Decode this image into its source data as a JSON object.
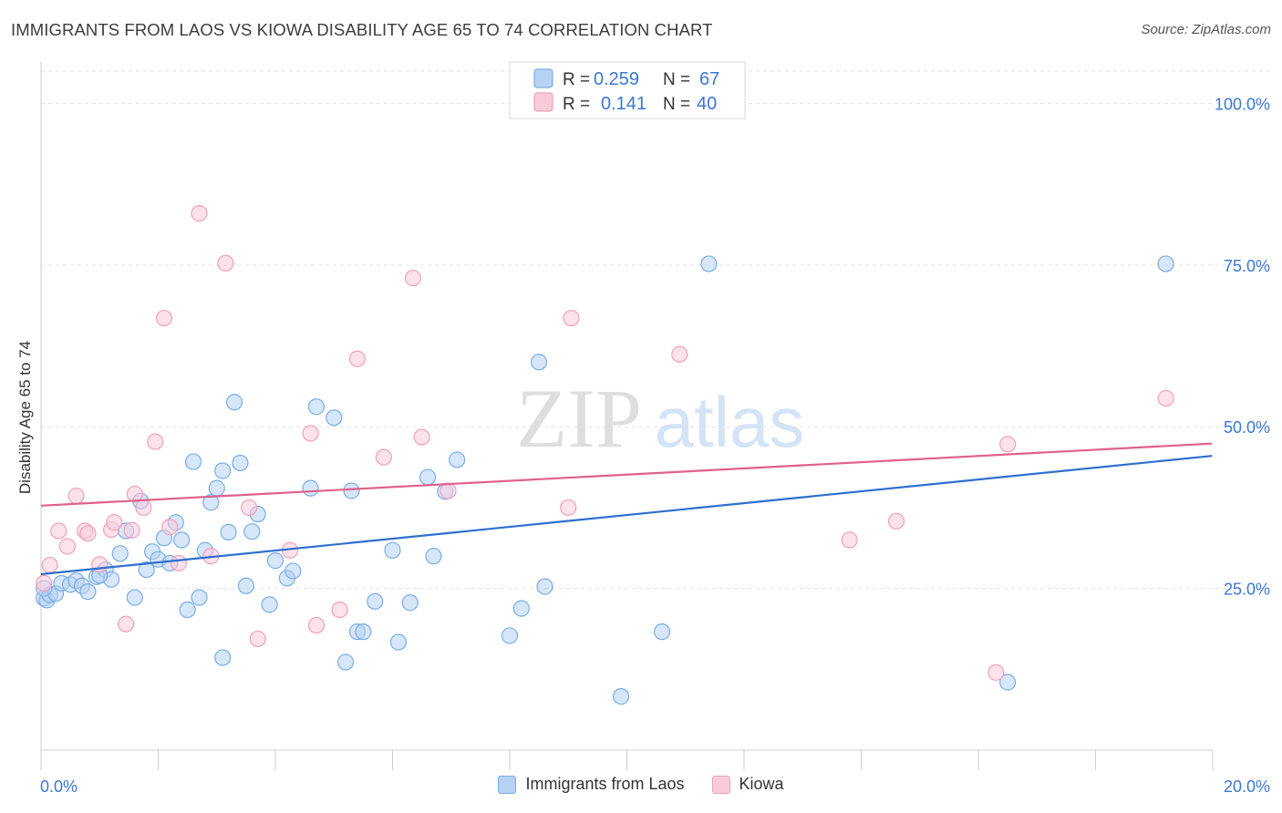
{
  "title": "IMMIGRANTS FROM LAOS VS KIOWA DISABILITY AGE 65 TO 74 CORRELATION CHART",
  "source": "Source: ZipAtlas.com",
  "watermark": {
    "zip": "ZIP",
    "atlas": "atlas"
  },
  "chart_data": {
    "type": "scatter",
    "xlabel": "",
    "ylabel": "Disability Age 65 to 74",
    "xlim": [
      0,
      20
    ],
    "ylim": [
      0,
      105
    ],
    "x_tick_labels": [
      "0.0%",
      "20.0%"
    ],
    "y_ticks": [
      25,
      50,
      75,
      100
    ],
    "y_tick_labels": [
      "25.0%",
      "50.0%",
      "75.0%",
      "100.0%"
    ],
    "grid": "horizontal dashed",
    "legend_placement": "top-center",
    "series": [
      {
        "name": "Immigrants from Laos",
        "color": "#7aaee8",
        "fill": "#b7d2f3",
        "line_color": "#2f6fcf",
        "R": "0.259",
        "N": "67",
        "trend": {
          "x": [
            0,
            19.99
          ],
          "y": [
            27.2,
            45.5
          ]
        },
        "points": [
          [
            0.05,
            23.5
          ],
          [
            0.1,
            23.2
          ],
          [
            0.15,
            24.0
          ],
          [
            0.25,
            24.2
          ],
          [
            0.35,
            25.8
          ],
          [
            0.5,
            25.6
          ],
          [
            0.6,
            26.2
          ],
          [
            0.7,
            25.4
          ],
          [
            0.8,
            24.5
          ],
          [
            0.95,
            26.8
          ],
          [
            1.1,
            27.9
          ],
          [
            1.2,
            26.4
          ],
          [
            1.35,
            30.4
          ],
          [
            1.45,
            33.9
          ],
          [
            1.6,
            23.6
          ],
          [
            1.7,
            38.5
          ],
          [
            1.8,
            27.9
          ],
          [
            1.9,
            30.7
          ],
          [
            2.0,
            29.5
          ],
          [
            2.1,
            32.8
          ],
          [
            2.2,
            28.9
          ],
          [
            2.3,
            35.2
          ],
          [
            2.4,
            32.5
          ],
          [
            2.5,
            21.7
          ],
          [
            2.6,
            44.6
          ],
          [
            2.7,
            23.6
          ],
          [
            2.8,
            30.9
          ],
          [
            2.9,
            38.3
          ],
          [
            3.0,
            40.5
          ],
          [
            3.1,
            43.2
          ],
          [
            3.1,
            14.3
          ],
          [
            3.2,
            33.7
          ],
          [
            3.3,
            53.8
          ],
          [
            3.4,
            44.4
          ],
          [
            3.5,
            25.4
          ],
          [
            3.6,
            33.8
          ],
          [
            3.7,
            36.5
          ],
          [
            3.9,
            22.5
          ],
          [
            4.0,
            29.3
          ],
          [
            4.2,
            26.6
          ],
          [
            4.3,
            27.7
          ],
          [
            4.6,
            40.5
          ],
          [
            4.7,
            53.1
          ],
          [
            5.0,
            51.4
          ],
          [
            5.2,
            13.6
          ],
          [
            5.3,
            40.1
          ],
          [
            5.4,
            18.3
          ],
          [
            5.5,
            18.3
          ],
          [
            5.7,
            23.0
          ],
          [
            6.0,
            30.9
          ],
          [
            6.1,
            16.7
          ],
          [
            6.3,
            22.8
          ],
          [
            6.6,
            42.2
          ],
          [
            6.7,
            30.0
          ],
          [
            6.9,
            40.0
          ],
          [
            7.1,
            44.9
          ],
          [
            8.0,
            17.7
          ],
          [
            8.2,
            21.9
          ],
          [
            8.5,
            60.0
          ],
          [
            8.6,
            25.3
          ],
          [
            9.9,
            8.3
          ],
          [
            10.6,
            18.3
          ],
          [
            11.4,
            75.2
          ],
          [
            16.5,
            10.5
          ],
          [
            19.2,
            75.2
          ],
          [
            0.05,
            25.0
          ],
          [
            1.0,
            27.0
          ]
        ]
      },
      {
        "name": "Kiowa",
        "color": "#f2a0ba",
        "fill": "#f9cbd9",
        "line_color": "#e0608c",
        "R": "0.141",
        "N": "40",
        "trend": {
          "x": [
            0,
            19.99
          ],
          "y": [
            37.8,
            47.4
          ]
        },
        "points": [
          [
            0.05,
            25.8
          ],
          [
            0.15,
            28.6
          ],
          [
            0.3,
            33.9
          ],
          [
            0.45,
            31.5
          ],
          [
            0.6,
            39.3
          ],
          [
            0.75,
            33.9
          ],
          [
            0.8,
            33.5
          ],
          [
            1.0,
            28.7
          ],
          [
            1.2,
            34.1
          ],
          [
            1.25,
            35.2
          ],
          [
            1.45,
            19.5
          ],
          [
            1.55,
            34.0
          ],
          [
            1.6,
            39.6
          ],
          [
            1.75,
            37.5
          ],
          [
            1.95,
            47.7
          ],
          [
            2.1,
            66.8
          ],
          [
            2.2,
            34.5
          ],
          [
            2.35,
            28.9
          ],
          [
            2.7,
            83.0
          ],
          [
            2.9,
            30.0
          ],
          [
            3.15,
            75.3
          ],
          [
            3.55,
            37.5
          ],
          [
            3.7,
            17.2
          ],
          [
            4.25,
            30.9
          ],
          [
            4.6,
            49.0
          ],
          [
            4.7,
            19.3
          ],
          [
            5.1,
            21.7
          ],
          [
            5.4,
            60.5
          ],
          [
            5.85,
            45.3
          ],
          [
            6.35,
            73.0
          ],
          [
            6.5,
            48.4
          ],
          [
            6.95,
            40.1
          ],
          [
            9.0,
            37.5
          ],
          [
            9.05,
            66.8
          ],
          [
            10.9,
            61.2
          ],
          [
            13.8,
            32.5
          ],
          [
            14.6,
            35.4
          ],
          [
            16.3,
            12.0
          ],
          [
            16.5,
            47.3
          ],
          [
            19.2,
            54.4
          ]
        ]
      }
    ]
  }
}
